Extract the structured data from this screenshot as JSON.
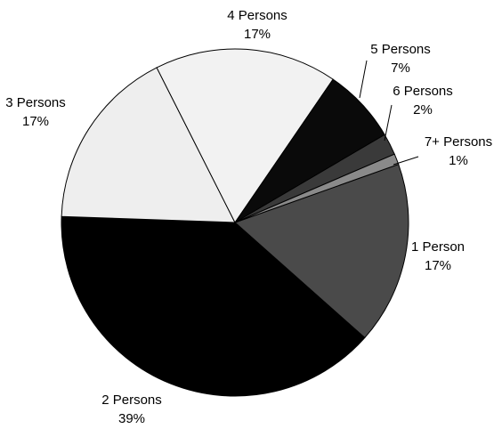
{
  "chart_data": {
    "type": "pie",
    "categories": [
      "1 Person",
      "2 Persons",
      "3 Persons",
      "4 Persons",
      "5 Persons",
      "6 Persons",
      "7+ Persons"
    ],
    "values": [
      17,
      39,
      17,
      17,
      7,
      2,
      1
    ],
    "value_labels": [
      "17%",
      "39%",
      "17%",
      "17%",
      "7%",
      "2%",
      "1%"
    ],
    "colors": [
      "#4a4a4a",
      "#000000",
      "#eeeeee",
      "#f2f2f2",
      "#0a0a0a",
      "#3a3a3a",
      "#8a8a8a"
    ]
  }
}
